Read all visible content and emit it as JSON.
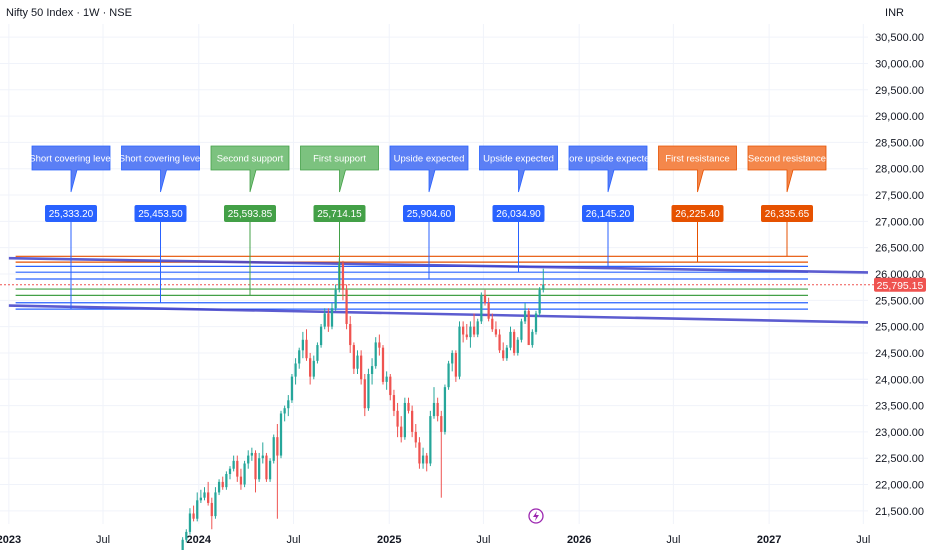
{
  "header": {
    "symbol_title": "Nifty 50 Index · 1W · NSE",
    "currency": "INR"
  },
  "colors": {
    "background": "#ffffff",
    "grid": "#f0f3fa",
    "axis_text": "#131722",
    "candle_up": "#26a69a",
    "candle_down": "#ef5350",
    "blue_callout": "#2962ff",
    "blue_label": "#5b7ff5",
    "green_callout": "#43a047",
    "green_label": "#7cc27f",
    "orange_callout": "#e65100",
    "orange_label": "#f4874b",
    "trend_line": "#3f3fc8",
    "current_price_tag": "#ef5350"
  },
  "icons": {
    "event_marker": "lightning-icon"
  },
  "chart_data": {
    "type": "candlestick",
    "title": "Nifty 50 Index · 1W · NSE",
    "y_unit": "INR",
    "ylim": [
      21250,
      30750
    ],
    "xlim": [
      "2022-12-15",
      "2027-07-10"
    ],
    "y_ticks": [
      "30,500.00",
      "30,000.00",
      "29,500.00",
      "29,000.00",
      "28,500.00",
      "28,000.00",
      "27,500.00",
      "27,000.00",
      "26,500.00",
      "26,000.00",
      "25,500.00",
      "25,000.00",
      "24,500.00",
      "24,000.00",
      "23,500.00",
      "23,000.00",
      "22,500.00",
      "22,000.00",
      "21,500.00"
    ],
    "x_ticks": [
      {
        "label": "2023",
        "date": "2023-01-01",
        "bold": true
      },
      {
        "label": "Jul",
        "date": "2023-07-01",
        "bold": false
      },
      {
        "label": "2024",
        "date": "2024-01-01",
        "bold": true
      },
      {
        "label": "Jul",
        "date": "2024-07-01",
        "bold": false
      },
      {
        "label": "2025",
        "date": "2025-01-01",
        "bold": true
      },
      {
        "label": "Jul",
        "date": "2025-07-01",
        "bold": false
      },
      {
        "label": "2026",
        "date": "2026-01-01",
        "bold": true
      },
      {
        "label": "Jul",
        "date": "2026-07-01",
        "bold": false
      },
      {
        "label": "2027",
        "date": "2027-01-01",
        "bold": true
      },
      {
        "label": "Jul",
        "date": "2027-07-01",
        "bold": false
      }
    ],
    "grid": true,
    "current_price": {
      "value": 25795.15,
      "label": "25,795.15"
    },
    "candles": [
      [
        "2023-12-01",
        20200,
        21000,
        20150,
        20950
      ],
      [
        "2023-12-08",
        20950,
        21150,
        20900,
        21100
      ],
      [
        "2023-12-15",
        21100,
        21550,
        21050,
        21450
      ],
      [
        "2023-12-22",
        21450,
        21600,
        21300,
        21350
      ],
      [
        "2023-12-29",
        21350,
        21850,
        21300,
        21700
      ],
      [
        "2024-01-05",
        21700,
        21900,
        21650,
        21750
      ],
      [
        "2024-01-12",
        21750,
        21950,
        21700,
        21850
      ],
      [
        "2024-01-19",
        21850,
        22050,
        21600,
        21650
      ],
      [
        "2024-01-26",
        21650,
        21750,
        21150,
        21400
      ],
      [
        "2024-02-02",
        21400,
        21950,
        21350,
        21850
      ],
      [
        "2024-02-09",
        21850,
        22100,
        21800,
        22050
      ],
      [
        "2024-02-16",
        22050,
        22150,
        21900,
        21950
      ],
      [
        "2024-02-23",
        21950,
        22250,
        21900,
        22200
      ],
      [
        "2024-03-01",
        22200,
        22350,
        22100,
        22300
      ],
      [
        "2024-03-08",
        22300,
        22550,
        22250,
        22450
      ],
      [
        "2024-03-15",
        22450,
        22550,
        22050,
        22150
      ],
      [
        "2024-03-22",
        22150,
        22300,
        21900,
        22000
      ],
      [
        "2024-03-29",
        22000,
        22450,
        21950,
        22400
      ],
      [
        "2024-04-05",
        22400,
        22650,
        22300,
        22550
      ],
      [
        "2024-04-12",
        22550,
        22700,
        22450,
        22600
      ],
      [
        "2024-04-19",
        22600,
        22650,
        21850,
        22100
      ],
      [
        "2024-04-26",
        22100,
        22600,
        22050,
        22500
      ],
      [
        "2024-05-03",
        22500,
        22800,
        22400,
        22550
      ],
      [
        "2024-05-10",
        22550,
        22600,
        22050,
        22100
      ],
      [
        "2024-05-17",
        22100,
        22500,
        22050,
        22450
      ],
      [
        "2024-05-24",
        22450,
        22950,
        22400,
        22900
      ],
      [
        "2024-05-31",
        22900,
        23150,
        21350,
        22550
      ],
      [
        "2024-06-07",
        22550,
        23400,
        22500,
        23350
      ],
      [
        "2024-06-14",
        23350,
        23500,
        23200,
        23450
      ],
      [
        "2024-06-21",
        23450,
        23700,
        23300,
        23600
      ],
      [
        "2024-06-28",
        23600,
        24100,
        23550,
        24050
      ],
      [
        "2024-07-05",
        24050,
        24400,
        23900,
        24300
      ],
      [
        "2024-07-12",
        24300,
        24600,
        24200,
        24550
      ],
      [
        "2024-07-19",
        24550,
        24900,
        24400,
        24750
      ],
      [
        "2024-07-26",
        24750,
        24950,
        24350,
        24400
      ],
      [
        "2024-08-02",
        24400,
        24500,
        23900,
        24050
      ],
      [
        "2024-08-09",
        24050,
        24450,
        24000,
        24350
      ],
      [
        "2024-08-16",
        24350,
        24700,
        24300,
        24650
      ],
      [
        "2024-08-23",
        24650,
        25050,
        24600,
        25000
      ],
      [
        "2024-08-30",
        25000,
        25350,
        24950,
        25250
      ],
      [
        "2024-09-06",
        25250,
        25350,
        24900,
        25000
      ],
      [
        "2024-09-13",
        25000,
        25450,
        24950,
        25350
      ],
      [
        "2024-09-20",
        25350,
        25800,
        25300,
        25700
      ],
      [
        "2024-09-27",
        25700,
        26300,
        25650,
        26200
      ],
      [
        "2024-10-04",
        26200,
        26250,
        25500,
        25700
      ],
      [
        "2024-10-11",
        25700,
        25800,
        24950,
        25050
      ],
      [
        "2024-10-18",
        25050,
        25200,
        24500,
        24650
      ],
      [
        "2024-10-25",
        24650,
        24700,
        24100,
        24200
      ],
      [
        "2024-11-01",
        24200,
        24550,
        24100,
        24450
      ],
      [
        "2024-11-08",
        24450,
        24550,
        23900,
        24000
      ],
      [
        "2024-11-15",
        24000,
        24100,
        23300,
        23450
      ],
      [
        "2024-11-22",
        23450,
        24200,
        23400,
        24100
      ],
      [
        "2024-11-29",
        24100,
        24400,
        23900,
        24250
      ],
      [
        "2024-12-06",
        24250,
        24800,
        24200,
        24700
      ],
      [
        "2024-12-13",
        24700,
        24850,
        24450,
        24600
      ],
      [
        "2024-12-20",
        24600,
        24650,
        23900,
        23950
      ],
      [
        "2024-12-27",
        23950,
        24150,
        23800,
        24050
      ],
      [
        "2025-01-03",
        24050,
        24100,
        23600,
        23700
      ],
      [
        "2025-01-10",
        23700,
        23800,
        23300,
        23400
      ],
      [
        "2025-01-17",
        23400,
        23550,
        22900,
        23100
      ],
      [
        "2025-01-24",
        23100,
        23300,
        22800,
        22900
      ],
      [
        "2025-01-31",
        22900,
        23650,
        22850,
        23550
      ],
      [
        "2025-02-07",
        23550,
        23650,
        23350,
        23400
      ],
      [
        "2025-02-14",
        23400,
        23500,
        22900,
        23000
      ],
      [
        "2025-02-21",
        23000,
        23150,
        22700,
        22800
      ],
      [
        "2025-02-28",
        22800,
        22900,
        22300,
        22400
      ],
      [
        "2025-03-07",
        22400,
        22700,
        22300,
        22550
      ],
      [
        "2025-03-14",
        22550,
        22600,
        22250,
        22400
      ],
      [
        "2025-03-21",
        22400,
        23400,
        22350,
        23300
      ],
      [
        "2025-03-28",
        23300,
        23850,
        23250,
        23550
      ],
      [
        "2025-04-04",
        23550,
        23650,
        23200,
        23300
      ],
      [
        "2025-04-11",
        23300,
        23400,
        21750,
        23000
      ],
      [
        "2025-04-18",
        23000,
        23900,
        22950,
        23850
      ],
      [
        "2025-04-25",
        23850,
        24350,
        23800,
        24300
      ],
      [
        "2025-05-02",
        24300,
        24550,
        24150,
        24500
      ],
      [
        "2025-05-09",
        24500,
        24550,
        23950,
        24050
      ],
      [
        "2025-05-16",
        24050,
        25100,
        24000,
        25000
      ],
      [
        "2025-05-23",
        25000,
        25100,
        24700,
        24850
      ],
      [
        "2025-05-30",
        24850,
        25050,
        24750,
        24800
      ],
      [
        "2025-06-06",
        24800,
        25100,
        24600,
        25000
      ],
      [
        "2025-06-13",
        25000,
        25250,
        24800,
        24850
      ],
      [
        "2025-06-20",
        24850,
        25150,
        24800,
        25100
      ],
      [
        "2025-06-27",
        25100,
        25650,
        25050,
        25600
      ],
      [
        "2025-07-04",
        25600,
        25700,
        25400,
        25450
      ],
      [
        "2025-07-11",
        25450,
        25550,
        25100,
        25150
      ],
      [
        "2025-07-18",
        25150,
        25250,
        24900,
        24950
      ],
      [
        "2025-07-25",
        24950,
        25100,
        24800,
        24850
      ],
      [
        "2025-08-01",
        24850,
        24950,
        24500,
        24550
      ],
      [
        "2025-08-08",
        24550,
        24700,
        24350,
        24400
      ],
      [
        "2025-08-15",
        24400,
        24650,
        24350,
        24600
      ],
      [
        "2025-08-22",
        24600,
        25000,
        24550,
        24900
      ],
      [
        "2025-08-29",
        24900,
        24950,
        24450,
        24500
      ],
      [
        "2025-09-05",
        24500,
        24800,
        24450,
        24750
      ],
      [
        "2025-09-12",
        24750,
        25150,
        24700,
        25100
      ],
      [
        "2025-09-19",
        25100,
        25450,
        25050,
        25300
      ],
      [
        "2025-09-26",
        25300,
        25350,
        24700,
        24650
      ],
      [
        "2025-10-03",
        24650,
        24950,
        24600,
        24900
      ],
      [
        "2025-10-10",
        24900,
        25300,
        24850,
        25250
      ],
      [
        "2025-10-17",
        25250,
        25750,
        25200,
        25700
      ],
      [
        "2025-10-24",
        25700,
        26100,
        25650,
        25800
      ]
    ],
    "levels": [
      {
        "callout": "Short covering level",
        "value": 25333.2,
        "label": "25,333.20",
        "color_key": "blue",
        "start_date": "2023-01-14"
      },
      {
        "callout": "Short covering level",
        "value": 25453.5,
        "label": "25,453.50",
        "color_key": "blue",
        "start_date": "2023-01-14"
      },
      {
        "callout": "Second support",
        "value": 25593.85,
        "label": "25,593.85",
        "color_key": "green",
        "start_date": "2023-01-14"
      },
      {
        "callout": "First support",
        "value": 25714.15,
        "label": "25,714.15",
        "color_key": "green",
        "start_date": "2023-01-14"
      },
      {
        "callout": "Upside expected",
        "value": 25904.6,
        "label": "25,904.60",
        "color_key": "blue",
        "start_date": "2023-01-14"
      },
      {
        "callout": "Upside expected",
        "value": 26034.9,
        "label": "26,034.90",
        "color_key": "blue",
        "start_date": "2023-01-14"
      },
      {
        "callout": "More upside expected",
        "value": 26145.2,
        "label": "26,145.20",
        "color_key": "blue",
        "start_date": "2023-01-14"
      },
      {
        "callout": "First resistance",
        "value": 26225.4,
        "label": "26,225.40",
        "color_key": "orange",
        "start_date": "2023-01-14"
      },
      {
        "callout": "Second resistance",
        "value": 26335.65,
        "label": "26,335.65",
        "color_key": "orange",
        "start_date": "2023-01-14"
      }
    ],
    "trend_lines": [
      {
        "from": [
          "2023-01-01",
          26300
        ],
        "to": [
          "2027-07-10",
          26030
        ]
      },
      {
        "from": [
          "2023-01-01",
          25400
        ],
        "to": [
          "2027-07-10",
          25080
        ]
      }
    ],
    "event_marker_date": "2025-10-10"
  }
}
